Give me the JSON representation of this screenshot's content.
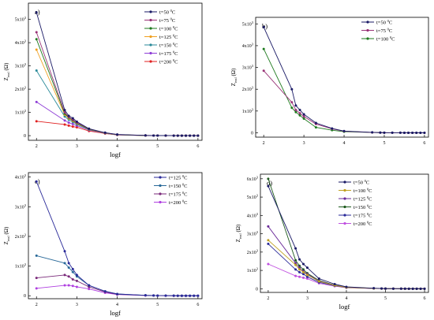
{
  "chart_data": [
    {
      "type": "line",
      "panel_label": "a)",
      "xlabel": "logf",
      "ylabel_main": "Z",
      "ylabel_sub": "real",
      "ylabel_unit": "(Ω)",
      "xlim": [
        1.8,
        6.1
      ],
      "ylim": [
        -200,
        5700
      ],
      "x_ticks": [
        "2",
        "3",
        "4",
        "5",
        "6"
      ],
      "y_ticks": [
        {
          "value": 0,
          "label": "0"
        },
        {
          "value": 1000,
          "label": "1x10",
          "exp": "3"
        },
        {
          "value": 2000,
          "label": "2x10",
          "exp": "3"
        },
        {
          "value": 3000,
          "label": "3x10",
          "exp": "3"
        },
        {
          "value": 4000,
          "label": "4x10",
          "exp": "3"
        },
        {
          "value": 5000,
          "label": "5x10",
          "exp": "3"
        }
      ],
      "x": [
        2,
        2.7,
        2.8,
        2.9,
        3,
        3.3,
        3.7,
        4,
        4.7,
        4.9,
        5,
        5.2,
        5.4,
        5.5,
        5.6,
        5.7,
        5.8,
        5.9,
        6
      ],
      "series": [
        {
          "name": "t=50 °C",
          "color": "#1a1a66",
          "values": [
            5300,
            1100,
            850,
            750,
            600,
            300,
            130,
            50,
            10,
            5,
            3,
            2,
            1,
            1,
            1,
            0,
            0,
            0,
            0
          ]
        },
        {
          "name": "t=75 °C",
          "color": "#993377",
          "values": [
            4450,
            1000,
            800,
            680,
            560,
            290,
            120,
            45,
            9,
            5,
            3,
            2,
            1,
            1,
            1,
            0,
            0,
            0,
            0
          ]
        },
        {
          "name": "t=100 °C",
          "color": "#1e7a1e",
          "values": [
            4150,
            950,
            780,
            660,
            540,
            280,
            115,
            42,
            8,
            5,
            3,
            2,
            1,
            1,
            1,
            0,
            0,
            0,
            0
          ]
        },
        {
          "name": "t=125 °C",
          "color": "#f0a020",
          "values": [
            3700,
            900,
            740,
            630,
            520,
            270,
            110,
            40,
            8,
            4,
            3,
            2,
            1,
            1,
            1,
            0,
            0,
            0,
            0
          ]
        },
        {
          "name": "t=150 °C",
          "color": "#2a8a99",
          "values": [
            2800,
            820,
            680,
            590,
            490,
            260,
            105,
            38,
            7,
            4,
            3,
            2,
            1,
            1,
            1,
            0,
            0,
            0,
            0
          ]
        },
        {
          "name": "t=175 °C",
          "color": "#8e3dd6",
          "values": [
            1450,
            650,
            560,
            500,
            430,
            240,
            100,
            35,
            7,
            4,
            3,
            2,
            1,
            1,
            1,
            0,
            0,
            0,
            0
          ]
        },
        {
          "name": "t=200 °C",
          "color": "#e02020",
          "values": [
            620,
            480,
            430,
            390,
            360,
            200,
            90,
            30,
            6,
            3,
            2,
            1,
            1,
            1,
            0,
            0,
            0,
            0,
            0
          ]
        }
      ]
    },
    {
      "type": "line",
      "panel_label": "b)",
      "xlabel": "",
      "ylabel_main": "Z",
      "ylabel_sub": "real",
      "ylabel_unit": "(Ω)",
      "xlim": [
        1.8,
        6.1
      ],
      "ylim": [
        -200,
        5300
      ],
      "x_ticks": [
        "2",
        "3",
        "4",
        "5",
        "6"
      ],
      "y_ticks": [
        {
          "value": 0,
          "label": "0"
        },
        {
          "value": 1000,
          "label": "1x10",
          "exp": "3"
        },
        {
          "value": 2000,
          "label": "2x10",
          "exp": "3"
        },
        {
          "value": 3000,
          "label": "3x10",
          "exp": "3"
        },
        {
          "value": 4000,
          "label": "4x10",
          "exp": "3"
        },
        {
          "value": 5000,
          "label": "5x10",
          "exp": "3"
        }
      ],
      "x": [
        2,
        2.7,
        2.8,
        2.9,
        3,
        3.3,
        3.7,
        4,
        4.7,
        4.9,
        5,
        5.2,
        5.4,
        5.5,
        5.6,
        5.7,
        5.8,
        5.9,
        6
      ],
      "series": [
        {
          "name": "t=50 °C",
          "color": "#1a1a66",
          "values": [
            4850,
            2000,
            1250,
            1050,
            850,
            450,
            200,
            80,
            20,
            10,
            5,
            3,
            2,
            1,
            1,
            1,
            0,
            0,
            0
          ]
        },
        {
          "name": "t=75 °C",
          "color": "#993377",
          "values": [
            2850,
            1400,
            1050,
            900,
            750,
            400,
            180,
            70,
            15,
            8,
            4,
            3,
            2,
            1,
            1,
            1,
            0,
            0,
            0
          ]
        },
        {
          "name": "t=100 °C",
          "color": "#1e7a1e",
          "values": [
            3850,
            1150,
            950,
            800,
            650,
            250,
            120,
            50,
            12,
            7,
            4,
            3,
            2,
            1,
            1,
            0,
            0,
            0,
            0
          ]
        }
      ]
    },
    {
      "type": "line",
      "panel_label": "c)",
      "xlabel": "logf",
      "ylabel_main": "Z",
      "ylabel_sub": "real",
      "ylabel_unit": "(Ω)",
      "xlim": [
        1.8,
        6.1
      ],
      "ylim": [
        -100,
        4150
      ],
      "x_ticks": [
        "2",
        "3",
        "4",
        "5",
        "6"
      ],
      "y_ticks": [
        {
          "value": 0,
          "label": "0"
        },
        {
          "value": 1000,
          "label": "1x10",
          "exp": "3"
        },
        {
          "value": 2000,
          "label": "2x10",
          "exp": "3"
        },
        {
          "value": 3000,
          "label": "3x10",
          "exp": "3"
        },
        {
          "value": 4000,
          "label": "4x10",
          "exp": "3"
        }
      ],
      "x": [
        2,
        2.7,
        2.8,
        2.9,
        3,
        3.3,
        3.7,
        4,
        4.7,
        4.9,
        5,
        5.2,
        5.4,
        5.5,
        5.6,
        5.7,
        5.8,
        5.9,
        6
      ],
      "series": [
        {
          "name": "t=125 °C",
          "color": "#2a2a99",
          "values": [
            3850,
            1500,
            1100,
            900,
            700,
            350,
            150,
            60,
            15,
            8,
            4,
            3,
            2,
            1,
            1,
            0,
            0,
            0,
            0
          ]
        },
        {
          "name": "t=150 °C",
          "color": "#2a6a99",
          "values": [
            1350,
            1100,
            950,
            800,
            650,
            350,
            150,
            60,
            15,
            8,
            4,
            3,
            2,
            1,
            1,
            0,
            0,
            0,
            0
          ]
        },
        {
          "name": "t=175 °C",
          "color": "#7a2a7a",
          "values": [
            600,
            700,
            650,
            550,
            500,
            300,
            130,
            50,
            12,
            6,
            3,
            2,
            1,
            1,
            1,
            0,
            0,
            0,
            0
          ]
        },
        {
          "name": "t=200 °C",
          "color": "#b040e0",
          "values": [
            250,
            350,
            350,
            330,
            300,
            230,
            100,
            40,
            10,
            5,
            3,
            2,
            1,
            1,
            0,
            0,
            0,
            0,
            0
          ]
        }
      ]
    },
    {
      "type": "line",
      "panel_label": "d)",
      "xlabel": "logf",
      "ylabel_main": "Z",
      "ylabel_sub": "real",
      "ylabel_unit": "(Ω)",
      "xlim": [
        1.8,
        6.1
      ],
      "ylim": [
        -200,
        6250
      ],
      "x_ticks": [
        "2",
        "3",
        "4",
        "5",
        "6"
      ],
      "y_ticks": [
        {
          "value": 0,
          "label": "0"
        },
        {
          "value": 1000,
          "label": "1x10",
          "exp": "3"
        },
        {
          "value": 2000,
          "label": "2x10",
          "exp": "3"
        },
        {
          "value": 3000,
          "label": "3x10",
          "exp": "3"
        },
        {
          "value": 4000,
          "label": "4x10",
          "exp": "3"
        },
        {
          "value": 5000,
          "label": "5x10",
          "exp": "3"
        },
        {
          "value": 6000,
          "label": "6x10",
          "exp": "3"
        }
      ],
      "x": [
        2,
        2.7,
        2.8,
        2.9,
        3,
        3.3,
        3.7,
        4,
        4.7,
        4.9,
        5,
        5.2,
        5.4,
        5.5,
        5.6,
        5.7,
        5.8,
        5.9,
        6
      ],
      "series": [
        {
          "name": "t=50 °C",
          "color": "#1a1a66",
          "values": [
            5600,
            2200,
            1600,
            1350,
            1150,
            550,
            250,
            100,
            30,
            15,
            8,
            5,
            3,
            2,
            1,
            1,
            0,
            0,
            0
          ]
        },
        {
          "name": "t=100 °C",
          "color": "#c0a020",
          "values": [
            2650,
            1300,
            1050,
            900,
            750,
            400,
            180,
            70,
            20,
            10,
            5,
            3,
            2,
            1,
            1,
            0,
            0,
            0,
            0
          ]
        },
        {
          "name": "t=125 °C",
          "color": "#6a2a99",
          "values": [
            3400,
            1400,
            1150,
            950,
            800,
            420,
            190,
            75,
            20,
            10,
            5,
            3,
            2,
            1,
            1,
            0,
            0,
            0,
            0
          ]
        },
        {
          "name": "t=150 °C",
          "color": "#1e5a1e",
          "values": [
            6000,
            1550,
            1250,
            1050,
            850,
            450,
            200,
            80,
            22,
            11,
            6,
            3,
            2,
            1,
            1,
            0,
            0,
            0,
            0
          ]
        },
        {
          "name": "t=175 °C",
          "color": "#2a2a99",
          "values": [
            2450,
            1050,
            900,
            800,
            650,
            350,
            160,
            65,
            18,
            9,
            5,
            3,
            2,
            1,
            1,
            0,
            0,
            0,
            0
          ]
        },
        {
          "name": "t=200 °C",
          "color": "#c050e0",
          "values": [
            1350,
            700,
            650,
            600,
            550,
            300,
            140,
            55,
            15,
            8,
            4,
            2,
            1,
            1,
            1,
            0,
            0,
            0,
            0
          ]
        }
      ]
    }
  ]
}
